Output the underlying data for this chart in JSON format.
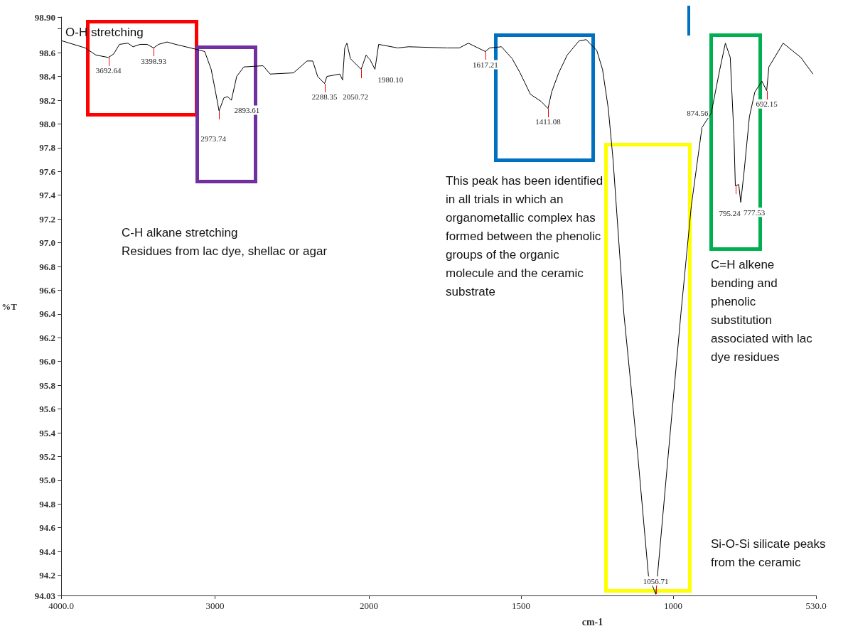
{
  "chart_data": [
    {
      "type": "line",
      "ylabel": "%T",
      "color": "#000000",
      "marker": "none",
      "line_style": "solid",
      "xlim": [
        4000,
        2000
      ],
      "ylim": [
        94.03,
        98.9
      ],
      "xticks": [
        {
          "value": 4000,
          "label": "4000.0"
        },
        3000,
        2000
      ],
      "yticks": [
        {
          "value": 94.03,
          "label": "94.03"
        },
        {
          "value": 94.2,
          "label": "94.2"
        },
        {
          "value": 94.4,
          "label": "94.4"
        },
        {
          "value": 94.6,
          "label": "94.6"
        },
        {
          "value": 94.8,
          "label": "94.8"
        },
        {
          "value": 95.0,
          "label": "95.0"
        },
        {
          "value": 95.2,
          "label": "95.2"
        },
        {
          "value": 95.4,
          "label": "95.4"
        },
        {
          "value": 95.6,
          "label": "95.6"
        },
        {
          "value": 95.8,
          "label": "95.8"
        },
        {
          "value": 96.0,
          "label": "96.0"
        },
        {
          "value": 96.2,
          "label": "96.2"
        },
        {
          "value": 96.4,
          "label": "96.4"
        },
        {
          "value": 96.6,
          "label": "96.6"
        },
        {
          "value": 96.8,
          "label": "96.8"
        },
        {
          "value": 97.0,
          "label": "97.0"
        },
        {
          "value": 97.2,
          "label": "97.2"
        },
        {
          "value": 97.4,
          "label": "97.4"
        },
        {
          "value": 97.6,
          "label": "97.6"
        },
        {
          "value": 97.8,
          "label": "97.8"
        },
        {
          "value": 98.0,
          "label": "98.0"
        },
        {
          "value": 98.2,
          "label": "98.2"
        },
        {
          "value": 98.4,
          "label": "98.4"
        },
        {
          "value": 98.6,
          "label": "98.6"
        },
        {
          "value": 98.8,
          "label": null
        },
        {
          "value": 98.9,
          "label": "98.90"
        }
      ],
      "x": [
        3995,
        3843,
        3774,
        3692.64,
        3658,
        3621,
        3566,
        3533,
        3487,
        3441,
        3398.93,
        3367,
        3312,
        3256,
        3127,
        3067,
        3025,
        2998,
        2973.74,
        2942,
        2919,
        2893.61,
        2859,
        2813,
        2688,
        2642,
        2490,
        2402,
        2365,
        2333,
        2288.35,
        2273,
        2189,
        2171,
        2157,
        2143,
        2120,
        2050.72,
        2018,
        2000
      ],
      "values": [
        98.7,
        98.64,
        98.58,
        98.56,
        98.59,
        98.67,
        98.68,
        98.65,
        98.67,
        98.67,
        98.64,
        98.67,
        98.69,
        98.67,
        98.63,
        98.61,
        98.46,
        98.28,
        98.11,
        98.22,
        98.23,
        98.2,
        98.4,
        98.48,
        98.49,
        98.42,
        98.43,
        98.53,
        98.53,
        98.4,
        98.34,
        98.4,
        98.42,
        98.37,
        98.64,
        98.68,
        98.55,
        98.46,
        98.58,
        98.55
      ],
      "annotations": [
        "O-H stretching",
        "C-H alkane stretching",
        "Residues from lac dye, shellac or agar",
        {
          "text": "3692.64",
          "x": 3692.64,
          "y": 98.56
        },
        {
          "text": "3398.93",
          "x": 3398.93,
          "y": 98.64
        },
        {
          "text": "2973.74",
          "x": 2973.74,
          "y": 98.11
        },
        {
          "text": "2893.61",
          "x": 2893.61,
          "y": 98.2
        },
        {
          "text": "2288.35",
          "x": 2288.35,
          "y": 98.34
        },
        {
          "text": "2050.72",
          "x": 2050.72,
          "y": 98.46
        }
      ]
    },
    {
      "type": "line",
      "xlabel": "cm-1",
      "color": "#000000",
      "marker": "none",
      "line_style": "solid",
      "tick_labels": "x",
      "xlim": [
        2000,
        530
      ],
      "ylim": [
        94.03,
        98.9
      ],
      "xticks": [
        1500,
        1000,
        {
          "value": 530,
          "label": "530.0"
        }
      ],
      "x": [
        1998,
        1980.1,
        1968,
        1905,
        1870,
        1742,
        1703,
        1673,
        1617.21,
        1603,
        1564,
        1529,
        1503,
        1469,
        1434,
        1411.08,
        1399,
        1376,
        1348,
        1309,
        1285,
        1271,
        1251,
        1232,
        1213,
        1197,
        1162,
        1116,
        1081,
        1056.71,
        1016,
        974,
        940,
        905,
        874.56,
        847,
        828,
        812,
        800,
        795.24,
        784,
        777.53,
        766,
        749,
        731,
        708,
        692.15,
        685,
        638,
        580,
        540
      ],
      "values": [
        98.55,
        98.46,
        98.67,
        98.64,
        98.65,
        98.64,
        98.64,
        98.68,
        98.61,
        98.64,
        98.65,
        98.55,
        98.43,
        98.25,
        98.19,
        98.13,
        98.27,
        98.43,
        98.58,
        98.7,
        98.71,
        98.67,
        98.62,
        98.46,
        98.13,
        97.69,
        96.41,
        95.21,
        94.2,
        94.04,
        95.21,
        96.41,
        97.31,
        97.97,
        98.09,
        98.45,
        98.68,
        98.56,
        97.91,
        97.48,
        97.49,
        97.34,
        97.61,
        98.06,
        98.27,
        98.36,
        98.28,
        98.48,
        98.68,
        98.56,
        98.42
      ],
      "annotations": [
        "This peak has been identified in all trials in which an organometallic complex has formed between the phenolic groups of the organic molecule and the ceramic substrate",
        "C=H alkene bending and phenolic substitution associated with lac dye residues",
        "Si-O-Si silicate peaks from the ceramic",
        {
          "text": "1980.10",
          "x": 1980.1,
          "y": 98.46
        },
        {
          "text": "1617.21",
          "x": 1617.21,
          "y": 98.61
        },
        {
          "text": "1411.08",
          "x": 1411.08,
          "y": 98.13
        },
        {
          "text": "1056.71",
          "x": 1056.71,
          "y": 94.04
        },
        {
          "text": "874.56",
          "x": 874.56,
          "y": 98.09
        },
        {
          "text": "795.24",
          "x": 795.24,
          "y": 97.48
        },
        {
          "text": "777.53",
          "x": 777.53,
          "y": 97.34
        },
        {
          "text": "692.15",
          "x": 692.15,
          "y": 98.28
        }
      ]
    }
  ]
}
